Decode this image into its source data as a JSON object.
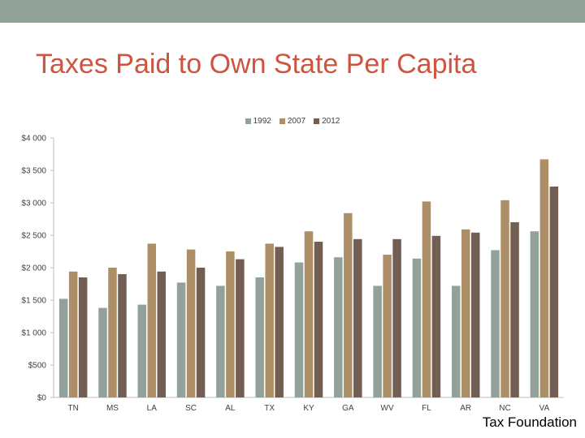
{
  "slide": {
    "title": "Taxes Paid to Own State Per Capita",
    "source": "Tax Foundation"
  },
  "colors": {
    "top_band": "#93a299",
    "title": "#cf543f"
  },
  "chart_data": {
    "type": "bar",
    "title": "",
    "xlabel": "",
    "ylabel": "",
    "categories": [
      "TN",
      "MS",
      "LA",
      "SC",
      "AL",
      "TX",
      "KY",
      "GA",
      "WV",
      "FL",
      "AR",
      "NC",
      "VA"
    ],
    "series": [
      {
        "name": "1992",
        "color": "#93a299",
        "values": [
          1520,
          1380,
          1430,
          1770,
          1720,
          1850,
          2080,
          2160,
          1720,
          2140,
          1720,
          2270,
          2560
        ]
      },
      {
        "name": "2007",
        "color": "#ad8f67",
        "values": [
          1940,
          2000,
          2370,
          2280,
          2250,
          2370,
          2560,
          2840,
          2200,
          3020,
          2590,
          3040,
          3670
        ]
      },
      {
        "name": "2012",
        "color": "#725e52",
        "values": [
          1850,
          1900,
          1940,
          2000,
          2130,
          2320,
          2400,
          2440,
          2440,
          2490,
          2540,
          2700,
          3250
        ]
      }
    ],
    "ylim": [
      0,
      4000
    ],
    "yticks": [
      0,
      500,
      1000,
      1500,
      2000,
      2500,
      3000,
      3500,
      4000
    ],
    "ytick_labels": [
      "$0",
      "$500",
      "$1 000",
      "$1 500",
      "$2 000",
      "$2 500",
      "$3 000",
      "$3 500",
      "$4 000"
    ],
    "grid": false,
    "legend_position": "top"
  }
}
